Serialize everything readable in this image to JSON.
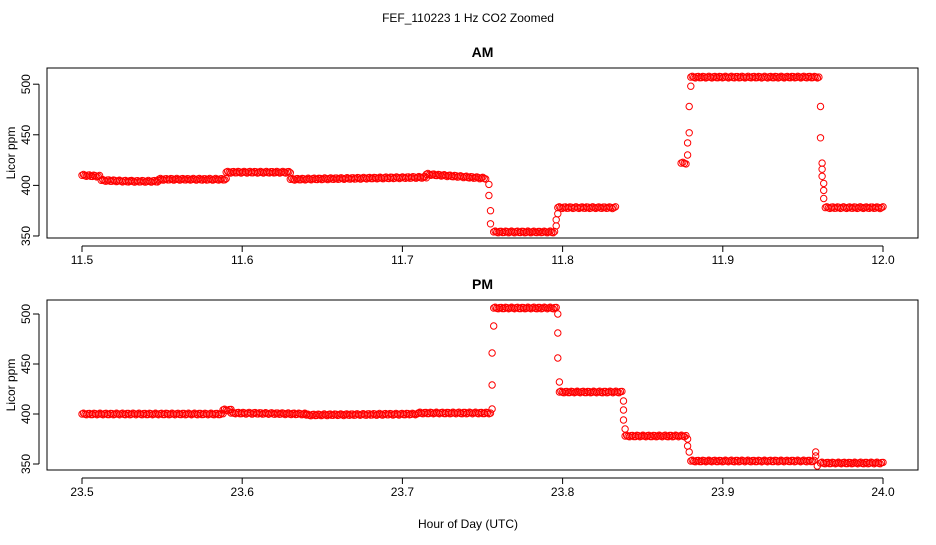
{
  "figure": {
    "title": "FEF_110223  1 Hz CO2 Zoomed",
    "xlabel": "Hour of Day (UTC)"
  },
  "colors": {
    "points": "#ff0000",
    "axes": "#000000",
    "background": "#ffffff"
  },
  "chart_data": [
    {
      "type": "scatter",
      "title": "AM",
      "xlabel": "",
      "ylabel": "Licor ppm",
      "xlim": [
        11.5,
        12.0
      ],
      "ylim": [
        348,
        516
      ],
      "xticks": [
        "11.5",
        "11.6",
        "11.7",
        "11.8",
        "11.9",
        "12.0"
      ],
      "yticks": [
        "350",
        "400",
        "450",
        "500"
      ],
      "grid": false,
      "legend": "none",
      "marker": "open-circle",
      "series": [
        {
          "segments": [
            {
              "x": [
                11.5,
                11.511
              ],
              "y": [
                410,
                409
              ]
            },
            {
              "x": [
                11.512,
                11.53
              ],
              "y": [
                405,
                404
              ]
            },
            {
              "x": [
                11.53,
                11.548
              ],
              "y": [
                404,
                404
              ]
            },
            {
              "x": [
                11.548,
                11.59
              ],
              "y": [
                406,
                406
              ]
            },
            {
              "x": [
                11.59,
                11.63
              ],
              "y": [
                413,
                413
              ]
            },
            {
              "x": [
                11.63,
                11.715
              ],
              "y": [
                406,
                408
              ]
            },
            {
              "x": [
                11.715,
                11.752
              ],
              "y": [
                411,
                407
              ]
            },
            {
              "x": [
                11.757,
                11.795
              ],
              "y": [
                354,
                354
              ]
            },
            {
              "x": [
                11.797,
                11.833
              ],
              "y": [
                378,
                378
              ]
            },
            {
              "x": [
                11.874,
                11.877
              ],
              "y": [
                422,
                422
              ]
            },
            {
              "x": [
                11.88,
                11.96
              ],
              "y": [
                507,
                507
              ]
            },
            {
              "x": [
                11.964,
                12.0
              ],
              "y": [
                378,
                378
              ]
            }
          ],
          "points": [
            {
              "x": 11.754,
              "y": 401
            },
            {
              "x": 11.754,
              "y": 390
            },
            {
              "x": 11.755,
              "y": 375
            },
            {
              "x": 11.755,
              "y": 362
            },
            {
              "x": 11.796,
              "y": 360
            },
            {
              "x": 11.796,
              "y": 366
            },
            {
              "x": 11.797,
              "y": 372
            },
            {
              "x": 11.878,
              "y": 430
            },
            {
              "x": 11.878,
              "y": 442
            },
            {
              "x": 11.879,
              "y": 452
            },
            {
              "x": 11.879,
              "y": 478
            },
            {
              "x": 11.88,
              "y": 498
            },
            {
              "x": 11.961,
              "y": 478
            },
            {
              "x": 11.961,
              "y": 447
            },
            {
              "x": 11.962,
              "y": 422
            },
            {
              "x": 11.962,
              "y": 416
            },
            {
              "x": 11.962,
              "y": 409
            },
            {
              "x": 11.963,
              "y": 402
            },
            {
              "x": 11.963,
              "y": 395
            },
            {
              "x": 11.963,
              "y": 387
            }
          ]
        }
      ]
    },
    {
      "type": "scatter",
      "title": "PM",
      "xlabel": "",
      "ylabel": "Licor ppm",
      "xlim": [
        23.5,
        24.0
      ],
      "ylim": [
        344,
        514
      ],
      "xticks": [
        "23.5",
        "23.6",
        "23.7",
        "23.8",
        "23.9",
        "24.0"
      ],
      "yticks": [
        "350",
        "400",
        "450",
        "500"
      ],
      "grid": false,
      "legend": "none",
      "marker": "open-circle",
      "series": [
        {
          "segments": [
            {
              "x": [
                23.5,
                23.588
              ],
              "y": [
                400,
                400
              ]
            },
            {
              "x": [
                23.588,
                23.593
              ],
              "y": [
                404,
                404
              ]
            },
            {
              "x": [
                23.593,
                23.64
              ],
              "y": [
                401,
                400
              ]
            },
            {
              "x": [
                23.64,
                23.71
              ],
              "y": [
                399,
                400
              ]
            },
            {
              "x": [
                23.71,
                23.755
              ],
              "y": [
                401,
                401
              ]
            },
            {
              "x": [
                23.757,
                23.796
              ],
              "y": [
                506,
                506
              ]
            },
            {
              "x": [
                23.798,
                23.837
              ],
              "y": [
                422,
                422
              ]
            },
            {
              "x": [
                23.839,
                23.877
              ],
              "y": [
                378,
                378
              ]
            },
            {
              "x": [
                23.88,
                23.957
              ],
              "y": [
                353,
                353
              ]
            },
            {
              "x": [
                23.961,
                24.0
              ],
              "y": [
                351,
                351
              ]
            }
          ],
          "points": [
            {
              "x": 23.756,
              "y": 405
            },
            {
              "x": 23.756,
              "y": 429
            },
            {
              "x": 23.756,
              "y": 461
            },
            {
              "x": 23.757,
              "y": 488
            },
            {
              "x": 23.797,
              "y": 500
            },
            {
              "x": 23.797,
              "y": 481
            },
            {
              "x": 23.797,
              "y": 456
            },
            {
              "x": 23.798,
              "y": 432
            },
            {
              "x": 23.838,
              "y": 413
            },
            {
              "x": 23.838,
              "y": 404
            },
            {
              "x": 23.838,
              "y": 394
            },
            {
              "x": 23.839,
              "y": 385
            },
            {
              "x": 23.878,
              "y": 375
            },
            {
              "x": 23.878,
              "y": 368
            },
            {
              "x": 23.879,
              "y": 362
            },
            {
              "x": 23.958,
              "y": 362
            },
            {
              "x": 23.958,
              "y": 358
            },
            {
              "x": 23.959,
              "y": 348
            }
          ]
        }
      ]
    }
  ]
}
